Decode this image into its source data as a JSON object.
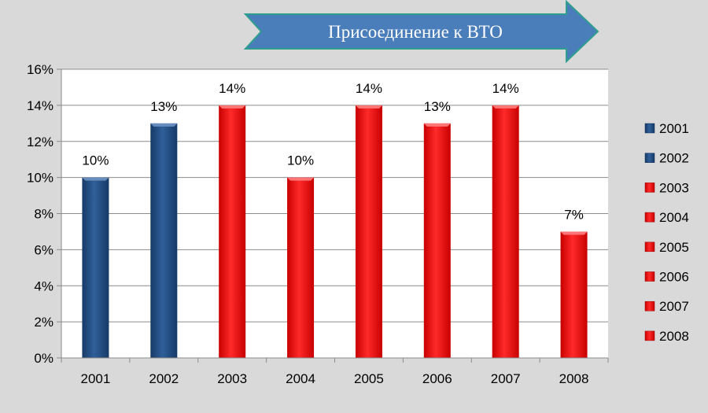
{
  "banner": {
    "text": "Присоединение к ВТО",
    "fill": "#4a7ebb",
    "stroke": "#2e9e8f"
  },
  "chart_data": {
    "type": "bar",
    "title": "",
    "xlabel": "",
    "ylabel": "",
    "ylim": [
      0,
      16
    ],
    "ytick_step": 2,
    "ytick_suffix": "%",
    "grid": true,
    "legend_position": "right",
    "categories": [
      "2001",
      "2002",
      "2003",
      "2004",
      "2005",
      "2006",
      "2007",
      "2008"
    ],
    "values": [
      10,
      13,
      14,
      10,
      14,
      13,
      14,
      7
    ],
    "value_labels": [
      "10%",
      "13%",
      "14%",
      "10%",
      "14%",
      "13%",
      "14%",
      "7%"
    ],
    "colors": [
      "#1f497d",
      "#1f497d",
      "#ff0000",
      "#ff0000",
      "#ff0000",
      "#ff0000",
      "#ff0000",
      "#ff0000"
    ],
    "legend": [
      "2001",
      "2002",
      "2003",
      "2004",
      "2005",
      "2006",
      "2007",
      "2008"
    ]
  }
}
